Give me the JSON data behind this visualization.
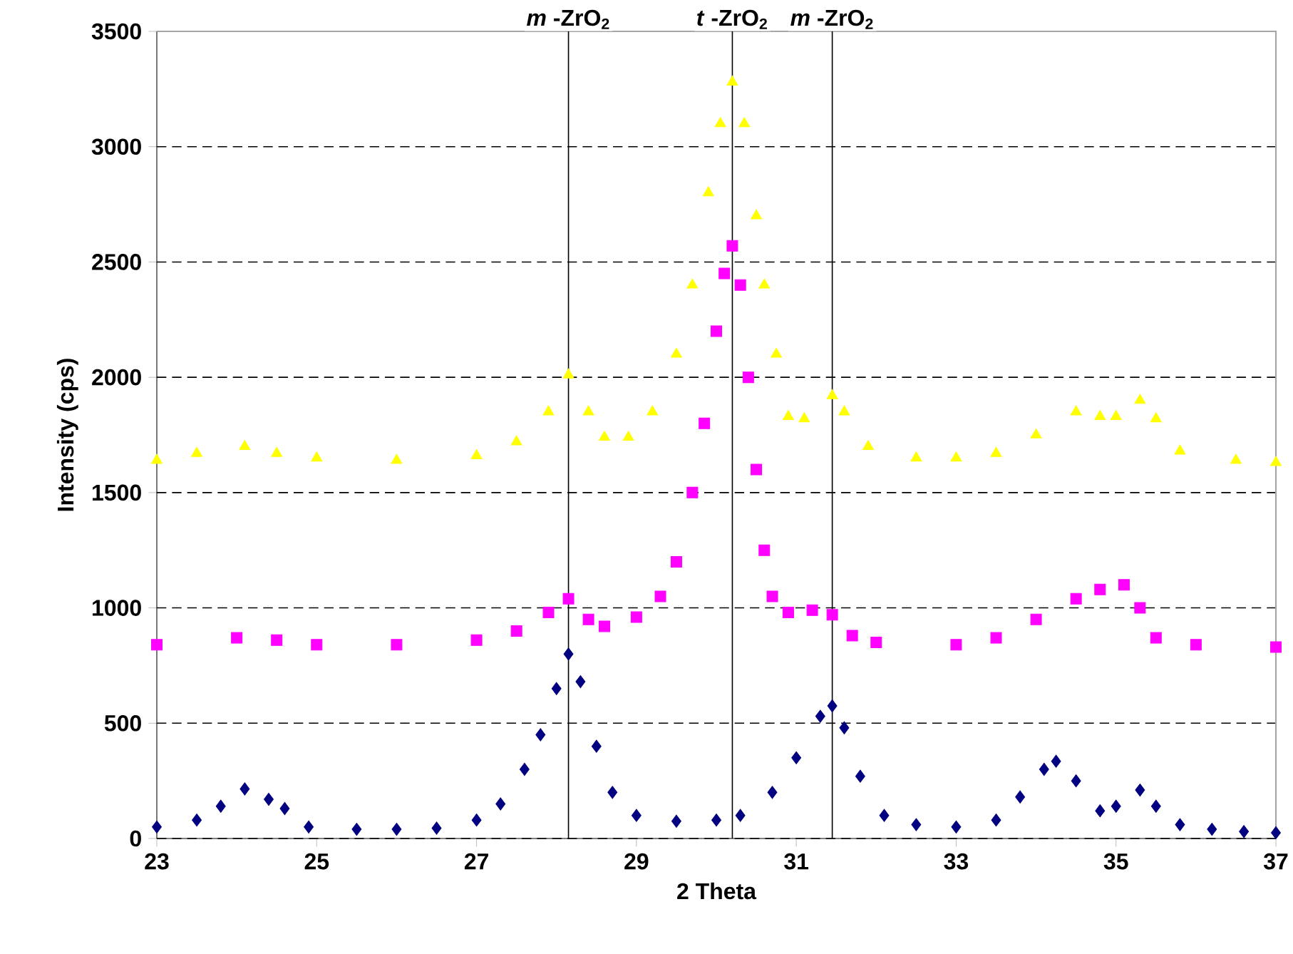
{
  "chart_data": {
    "type": "scatter",
    "xlabel": "2 Theta",
    "ylabel": "Intensity (cps)",
    "xlim": [
      23,
      37
    ],
    "xticks": [
      23,
      25,
      27,
      29,
      31,
      33,
      35,
      37
    ],
    "ylim": [
      0,
      3500
    ],
    "yticks": [
      0,
      500,
      1000,
      1500,
      2000,
      2500,
      3000,
      3500
    ],
    "grid": "y",
    "series": [
      {
        "color": "#000080",
        "marker": "diamond",
        "x": [
          23,
          23.5,
          23.8,
          24.1,
          24.4,
          24.6,
          24.9,
          25.5,
          26,
          26.5,
          27,
          27.3,
          27.6,
          27.8,
          28.0,
          28.15,
          28.3,
          28.5,
          28.7,
          29,
          29.5,
          30,
          30.3,
          30.7,
          31.0,
          31.3,
          31.45,
          31.6,
          31.8,
          32.1,
          32.5,
          33,
          33.5,
          33.8,
          34.1,
          34.25,
          34.5,
          34.8,
          35.0,
          35.3,
          35.5,
          35.8,
          36.2,
          36.6,
          37
        ],
        "values": [
          50,
          80,
          140,
          215,
          170,
          130,
          50,
          40,
          40,
          45,
          80,
          150,
          300,
          450,
          650,
          800,
          680,
          400,
          200,
          100,
          75,
          80,
          100,
          200,
          350,
          530,
          575,
          480,
          270,
          100,
          60,
          50,
          80,
          180,
          300,
          335,
          250,
          120,
          140,
          210,
          140,
          60,
          40,
          30,
          25
        ]
      },
      {
        "color": "#ff00ff",
        "marker": "square",
        "x": [
          23,
          24,
          24.5,
          25,
          26,
          27,
          27.5,
          27.9,
          28.15,
          28.4,
          28.6,
          29,
          29.3,
          29.5,
          29.7,
          29.85,
          30.0,
          30.1,
          30.2,
          30.3,
          30.4,
          30.5,
          30.6,
          30.7,
          30.9,
          31.2,
          31.45,
          31.7,
          32,
          33,
          33.5,
          34,
          34.5,
          34.8,
          35.1,
          35.3,
          35.5,
          36,
          37
        ],
        "values": [
          840,
          870,
          860,
          840,
          840,
          860,
          900,
          980,
          1040,
          950,
          920,
          960,
          1050,
          1200,
          1500,
          1800,
          2200,
          2450,
          2570,
          2400,
          2000,
          1600,
          1250,
          1050,
          980,
          990,
          970,
          880,
          850,
          840,
          870,
          950,
          1040,
          1080,
          1100,
          1000,
          870,
          840,
          830
        ]
      },
      {
        "color": "#ffff00",
        "marker": "triangle",
        "x": [
          23,
          23.5,
          24.1,
          24.5,
          25,
          26,
          27,
          27.5,
          27.9,
          28.15,
          28.4,
          28.6,
          28.9,
          29.2,
          29.5,
          29.7,
          29.9,
          30.05,
          30.2,
          30.35,
          30.5,
          30.6,
          30.75,
          30.9,
          31.1,
          31.45,
          31.6,
          31.9,
          32.5,
          33,
          33.5,
          34,
          34.5,
          34.8,
          35.0,
          35.3,
          35.5,
          35.8,
          36.5,
          37
        ],
        "values": [
          1640,
          1670,
          1700,
          1670,
          1650,
          1640,
          1660,
          1720,
          1850,
          2010,
          1850,
          1740,
          1740,
          1850,
          2100,
          2400,
          2800,
          3100,
          3280,
          3100,
          2700,
          2400,
          2100,
          1830,
          1820,
          1920,
          1850,
          1700,
          1650,
          1650,
          1670,
          1750,
          1850,
          1830,
          1830,
          1900,
          1820,
          1680,
          1640,
          1630
        ]
      }
    ],
    "ref_lines": [
      {
        "axis": "x",
        "value": 28.15,
        "label": "*m* -ZrO$_{2}$",
        "color": "#000000"
      },
      {
        "axis": "x",
        "value": 30.2,
        "label": "*t* -ZrO$_{2}$",
        "color": "#000000"
      },
      {
        "axis": "x",
        "value": 31.45,
        "label": "*m* -ZrO$_{2}$",
        "color": "#000000"
      }
    ]
  }
}
